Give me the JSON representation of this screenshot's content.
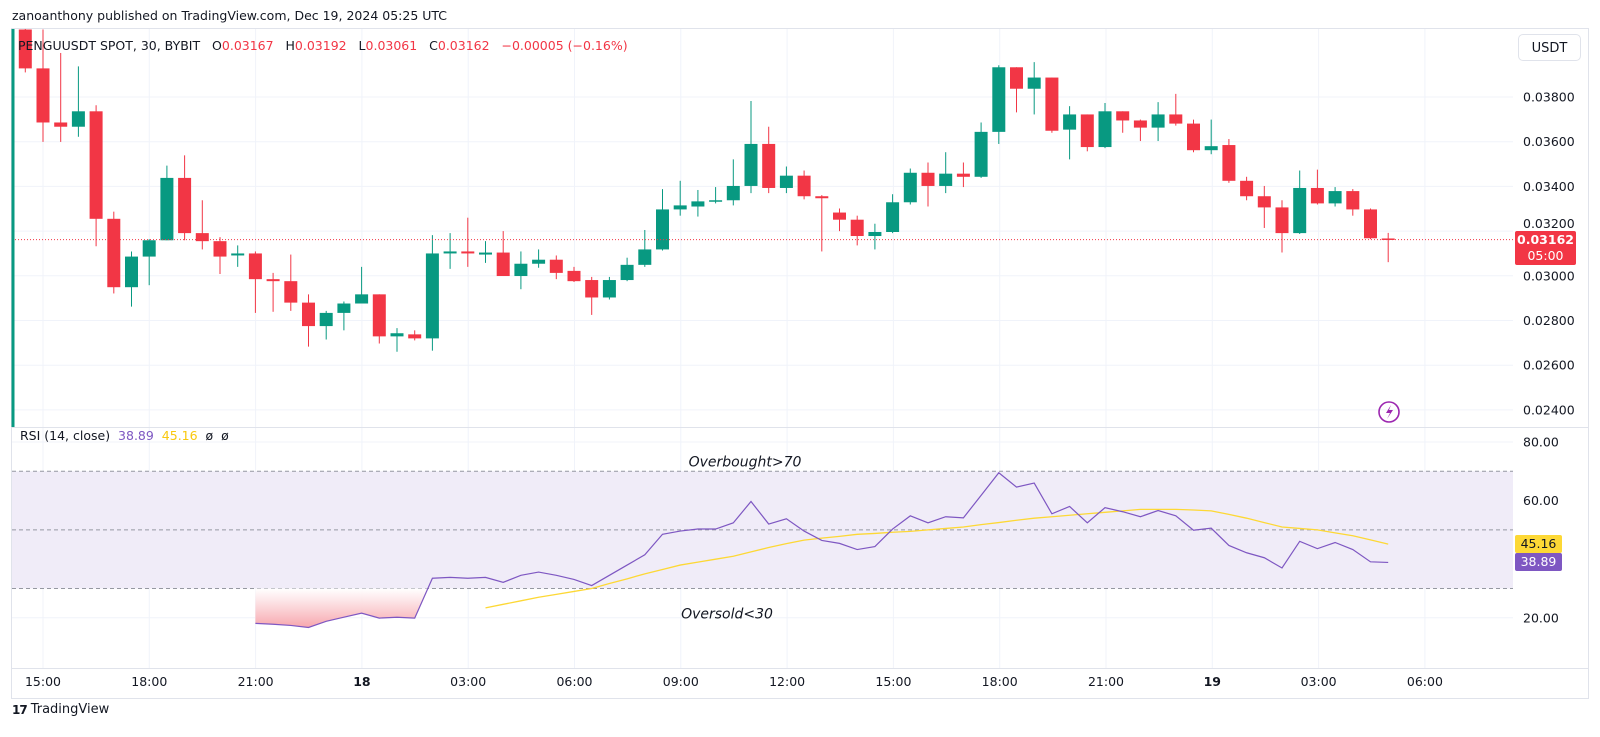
{
  "header": {
    "publisher_line": "zanoanthony published on TradingView.com, Dec 19, 2024 05:25 UTC"
  },
  "legend": {
    "symbol": "PENGUUSDT SPOT, 30, BYBIT",
    "o_label": "O",
    "o": "0.03167",
    "h_label": "H",
    "h": "0.03192",
    "l_label": "L",
    "l": "0.03061",
    "c_label": "C",
    "c": "0.03162",
    "change": "−0.00005 (−0.16%)"
  },
  "currency_button": "USDT",
  "price_tag": {
    "price": "0.03162",
    "countdown": "05:00"
  },
  "rsi_legend": {
    "name": "RSI (14, close)",
    "rsi": "38.89",
    "ma": "45.16",
    "extra1": "ø",
    "extra2": "ø"
  },
  "rsi_tags": {
    "ma": "45.16",
    "rsi": "38.89"
  },
  "annotations": {
    "overbought": "Overbought>70",
    "oversold": "Oversold<30"
  },
  "logo": {
    "text": "TradingView",
    "mark": "17"
  },
  "colors": {
    "up": "#089981",
    "down": "#f23645",
    "rsi": "#7e57c2",
    "rsi_ma": "#fdd835",
    "band_fill": "#f0ecf8",
    "oversold_fill": "#f7a6ad"
  },
  "icons": {
    "alert": "lightning-icon"
  },
  "chart_data": [
    {
      "type": "candlestick",
      "title": "PENGUUSDT SPOT, 30, BYBIT",
      "start": "2024-12-17 14:30",
      "interval_minutes": 30,
      "ylim": [
        0.02324,
        0.04109
      ],
      "y_tick_labels": [
        "0.03800",
        "0.03600",
        "0.03400",
        "0.03200",
        "0.03000",
        "0.02800",
        "0.02600",
        "0.02400"
      ],
      "y_ticks": [
        0.038,
        0.036,
        0.034,
        0.032,
        0.03,
        0.028,
        0.026,
        0.024
      ],
      "x_tick_labels": [
        "15:00",
        "18:00",
        "21:00",
        "18",
        "03:00",
        "06:00",
        "09:00",
        "12:00",
        "15:00",
        "18:00",
        "21:00",
        "19",
        "03:00",
        "06:00"
      ],
      "last_price": 0.03162,
      "grid": true,
      "ohlc": [
        [
          0.04102,
          0.04125,
          0.0391,
          0.03928
        ],
        [
          0.03928,
          0.04102,
          0.03599,
          0.03686
        ],
        [
          0.03686,
          0.03997,
          0.03599,
          0.03667
        ],
        [
          0.03667,
          0.03937,
          0.03622,
          0.03736
        ],
        [
          0.03736,
          0.03763,
          0.03132,
          0.03255
        ],
        [
          0.03255,
          0.03287,
          0.02921,
          0.02949
        ],
        [
          0.02949,
          0.03109,
          0.02862,
          0.03086
        ],
        [
          0.03086,
          0.03164,
          0.02958,
          0.03159
        ],
        [
          0.03159,
          0.03493,
          0.03159,
          0.03438
        ],
        [
          0.03438,
          0.03539,
          0.03159,
          0.03191
        ],
        [
          0.03191,
          0.03338,
          0.03118,
          0.03155
        ],
        [
          0.03155,
          0.03173,
          0.03008,
          0.03086
        ],
        [
          0.03091,
          0.03136,
          0.0304,
          0.031
        ],
        [
          0.031,
          0.03109,
          0.02834,
          0.02985
        ],
        [
          0.02985,
          0.03013,
          0.02839,
          0.02976
        ],
        [
          0.02976,
          0.03095,
          0.02843,
          0.0288
        ],
        [
          0.0288,
          0.02917,
          0.02683,
          0.02775
        ],
        [
          0.02775,
          0.02843,
          0.02715,
          0.02834
        ],
        [
          0.02834,
          0.02885,
          0.02756,
          0.02876
        ],
        [
          0.02876,
          0.0304,
          0.02876,
          0.02917
        ],
        [
          0.02917,
          0.02917,
          0.02697,
          0.02729
        ],
        [
          0.02729,
          0.02766,
          0.0266,
          0.02743
        ],
        [
          0.02738,
          0.02756,
          0.02711,
          0.0272
        ],
        [
          0.0272,
          0.03182,
          0.02665,
          0.031
        ],
        [
          0.031,
          0.03191,
          0.03031,
          0.03109
        ],
        [
          0.03109,
          0.0326,
          0.0304,
          0.031
        ],
        [
          0.03095,
          0.03155,
          0.03058,
          0.03104
        ],
        [
          0.03104,
          0.032,
          0.02999,
          0.02999
        ],
        [
          0.02999,
          0.03109,
          0.0294,
          0.03054
        ],
        [
          0.03054,
          0.03118,
          0.03036,
          0.03072
        ],
        [
          0.03072,
          0.03091,
          0.02985,
          0.03013
        ],
        [
          0.03022,
          0.0304,
          0.02972,
          0.02976
        ],
        [
          0.02981,
          0.02995,
          0.02825,
          0.02903
        ],
        [
          0.02903,
          0.02995,
          0.02894,
          0.02981
        ],
        [
          0.02981,
          0.03081,
          0.02976,
          0.03049
        ],
        [
          0.03049,
          0.03205,
          0.0304,
          0.03118
        ],
        [
          0.03118,
          0.03388,
          0.03113,
          0.03297
        ],
        [
          0.03297,
          0.03425,
          0.03269,
          0.03315
        ],
        [
          0.0331,
          0.03384,
          0.03265,
          0.03333
        ],
        [
          0.03333,
          0.03397,
          0.03324,
          0.03338
        ],
        [
          0.03338,
          0.03521,
          0.03315,
          0.03402
        ],
        [
          0.03402,
          0.03782,
          0.0337,
          0.0359
        ],
        [
          0.0359,
          0.03667,
          0.0337,
          0.03393
        ],
        [
          0.03393,
          0.03489,
          0.0337,
          0.03448
        ],
        [
          0.03448,
          0.03471,
          0.03342,
          0.03356
        ],
        [
          0.03356,
          0.03361,
          0.03109,
          0.03347
        ],
        [
          0.03283,
          0.03301,
          0.032,
          0.03251
        ],
        [
          0.03251,
          0.03269,
          0.03136,
          0.03178
        ],
        [
          0.03178,
          0.03233,
          0.03118,
          0.03196
        ],
        [
          0.03196,
          0.03365,
          0.03191,
          0.03329
        ],
        [
          0.03329,
          0.0348,
          0.03319,
          0.03461
        ],
        [
          0.03461,
          0.03507,
          0.0331,
          0.03402
        ],
        [
          0.03402,
          0.03553,
          0.0337,
          0.03457
        ],
        [
          0.03457,
          0.03507,
          0.03397,
          0.03443
        ],
        [
          0.03443,
          0.03686,
          0.03438,
          0.03644
        ],
        [
          0.03644,
          0.03942,
          0.0359,
          0.03933
        ],
        [
          0.03933,
          0.03933,
          0.03731,
          0.03837
        ],
        [
          0.03837,
          0.03956,
          0.03722,
          0.03887
        ],
        [
          0.03887,
          0.03887,
          0.0364,
          0.03649
        ],
        [
          0.03654,
          0.03759,
          0.03521,
          0.03722
        ],
        [
          0.03722,
          0.03722,
          0.03557,
          0.03576
        ],
        [
          0.03576,
          0.03773,
          0.03571,
          0.03736
        ],
        [
          0.03736,
          0.03736,
          0.0364,
          0.03695
        ],
        [
          0.03695,
          0.03699,
          0.03603,
          0.03663
        ],
        [
          0.03663,
          0.03777,
          0.03603,
          0.03722
        ],
        [
          0.03722,
          0.03814,
          0.03672,
          0.03681
        ],
        [
          0.03681,
          0.03699,
          0.03553,
          0.03562
        ],
        [
          0.03562,
          0.03699,
          0.03544,
          0.0358
        ],
        [
          0.03585,
          0.03612,
          0.03416,
          0.03425
        ],
        [
          0.03425,
          0.03443,
          0.03338,
          0.03356
        ],
        [
          0.03356,
          0.03402,
          0.03214,
          0.03306
        ],
        [
          0.03306,
          0.03338,
          0.03104,
          0.03191
        ],
        [
          0.03191,
          0.03471,
          0.03187,
          0.03393
        ],
        [
          0.03393,
          0.03475,
          0.03319,
          0.03324
        ],
        [
          0.03324,
          0.03397,
          0.0331,
          0.03379
        ],
        [
          0.03379,
          0.03388,
          0.03269,
          0.03297
        ],
        [
          0.03297,
          0.03301,
          0.03164,
          0.03168
        ],
        [
          0.03167,
          0.03192,
          0.03061,
          0.03162
        ]
      ]
    },
    {
      "type": "line",
      "title": "RSI (14, close)",
      "ylim": [
        2.4,
        84.5
      ],
      "y_tick_labels": [
        "80.00",
        "60.00",
        "20.00"
      ],
      "y_ticks": [
        80,
        60,
        20
      ],
      "bands": {
        "upper": 70,
        "middle": 50,
        "lower": 30
      },
      "series": [
        {
          "name": "RSI",
          "start_index": 13,
          "values": [
            18.1,
            17.8,
            17.4,
            16.7,
            18.8,
            20.2,
            21.6,
            19.9,
            20.2,
            19.9,
            33.5,
            33.8,
            33.5,
            33.8,
            32.1,
            34.5,
            35.6,
            34.5,
            33.1,
            31.0,
            34.5,
            38.0,
            41.5,
            48.5,
            49.6,
            50.3,
            50.3,
            52.4,
            59.7,
            52.0,
            53.8,
            49.6,
            46.4,
            45.4,
            43.3,
            44.3,
            50.3,
            54.8,
            52.4,
            54.5,
            54.1,
            61.8,
            69.5,
            64.6,
            66.0,
            55.5,
            58.0,
            52.4,
            57.6,
            56.2,
            54.5,
            56.6,
            54.8,
            49.9,
            50.6,
            44.7,
            42.2,
            40.5,
            37.0,
            46.1,
            43.6,
            45.7,
            43.3,
            39.1,
            38.89
          ]
        },
        {
          "name": "RSI-based MA",
          "start_index": 26,
          "values": [
            23.4,
            24.6,
            25.8,
            27.0,
            28.0,
            29.0,
            30.0,
            31.7,
            33.3,
            35.0,
            36.5,
            38.0,
            39.0,
            40.0,
            41.0,
            42.5,
            44.0,
            45.3,
            46.5,
            47.2,
            47.8,
            48.5,
            48.8,
            49.2,
            49.5,
            50.0,
            50.5,
            51.0,
            51.8,
            52.5,
            53.3,
            54.0,
            54.5,
            55.0,
            55.5,
            56.0,
            56.5,
            57.0,
            57.0,
            57.0,
            56.8,
            56.5,
            55.3,
            54.0,
            52.5,
            51.0,
            50.5,
            50.0,
            49.0,
            48.0,
            46.6,
            45.16
          ]
        }
      ]
    }
  ]
}
